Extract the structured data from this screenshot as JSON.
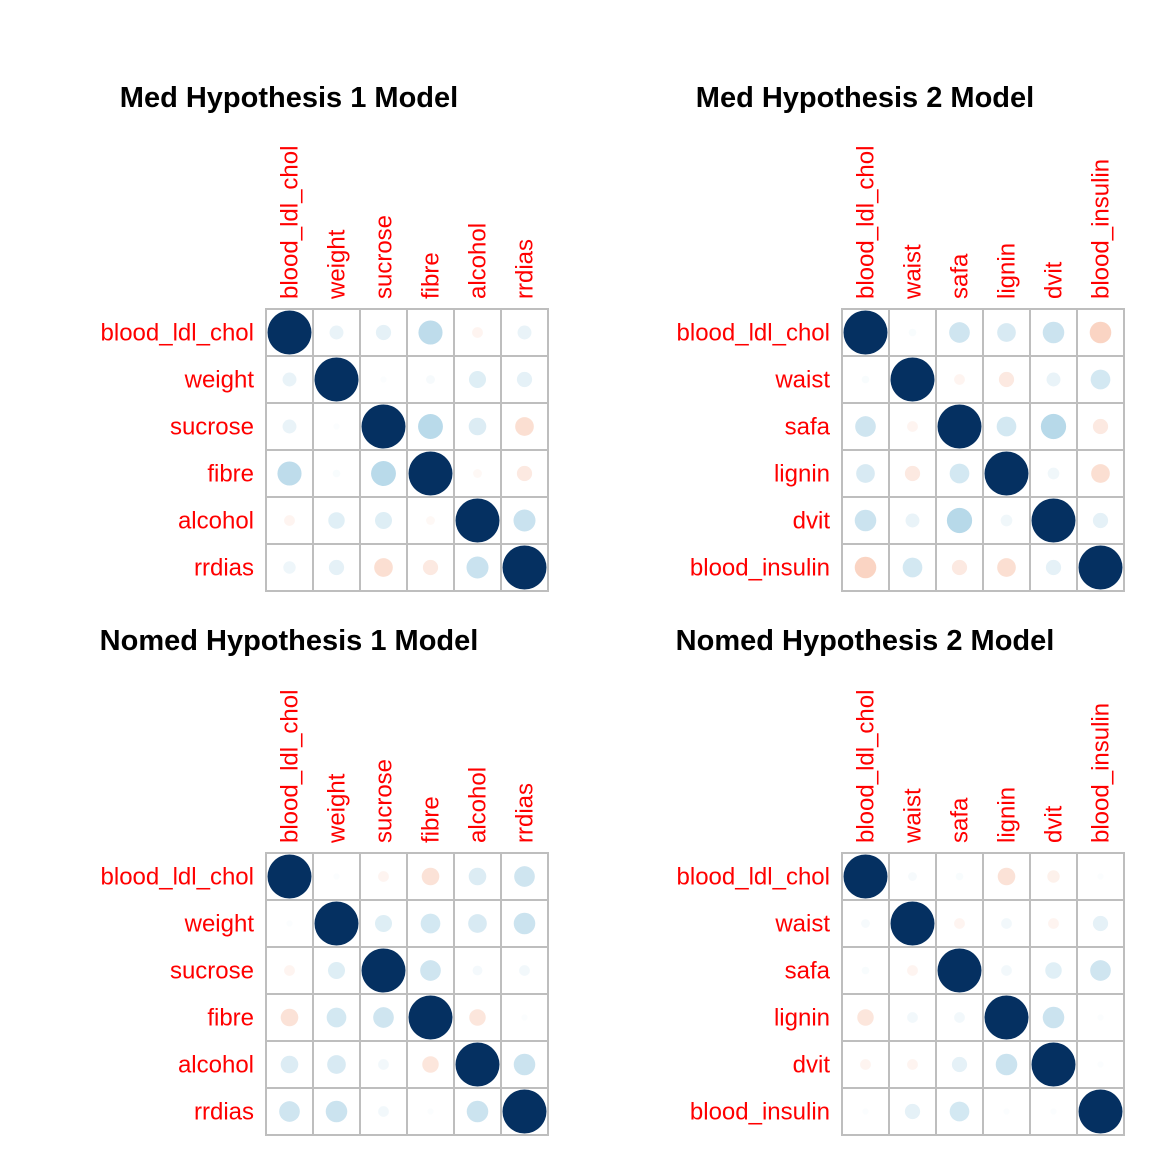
{
  "chart_data": [
    {
      "type": "heatmap",
      "title": "Med Hypothesis 1 Model",
      "variables": [
        "blood_ldl_chol",
        "weight",
        "sucrose",
        "fibre",
        "alcohol",
        "rrdias"
      ],
      "matrix": [
        [
          1.0,
          0.1,
          0.12,
          0.3,
          -0.06,
          0.1
        ],
        [
          0.1,
          1.0,
          0.02,
          0.04,
          0.15,
          0.12
        ],
        [
          0.1,
          0.02,
          1.0,
          0.32,
          0.16,
          -0.18
        ],
        [
          0.3,
          0.03,
          0.32,
          1.0,
          -0.04,
          -0.12
        ],
        [
          -0.06,
          0.14,
          0.15,
          -0.04,
          1.0,
          0.25
        ],
        [
          0.08,
          0.12,
          -0.18,
          -0.12,
          0.25,
          1.0
        ]
      ],
      "color_scale": {
        "negative": "#B2182B",
        "neutral": "#FFFFFF",
        "positive": "#053061"
      }
    },
    {
      "type": "heatmap",
      "title": "Med Hypothesis 2 Model",
      "variables": [
        "blood_ldl_chol",
        "waist",
        "safa",
        "lignin",
        "dvit",
        "blood_insulin"
      ],
      "matrix": [
        [
          1.0,
          0.03,
          0.22,
          0.18,
          0.24,
          -0.24
        ],
        [
          0.03,
          1.0,
          -0.06,
          -0.12,
          0.1,
          0.2
        ],
        [
          0.22,
          -0.06,
          1.0,
          0.2,
          0.33,
          -0.12
        ],
        [
          0.18,
          -0.12,
          0.2,
          1.0,
          0.07,
          -0.18
        ],
        [
          0.24,
          0.1,
          0.33,
          0.07,
          1.0,
          0.12
        ],
        [
          -0.24,
          0.2,
          -0.12,
          -0.18,
          0.12,
          1.0
        ]
      ],
      "color_scale": {
        "negative": "#B2182B",
        "neutral": "#FFFFFF",
        "positive": "#053061"
      }
    },
    {
      "type": "heatmap",
      "title": "Nomed Hypothesis 1 Model",
      "variables": [
        "blood_ldl_chol",
        "weight",
        "sucrose",
        "fibre",
        "alcohol",
        "rrdias"
      ],
      "matrix": [
        [
          1.0,
          0.02,
          -0.06,
          -0.16,
          0.16,
          0.22
        ],
        [
          0.02,
          1.0,
          0.15,
          0.2,
          0.18,
          0.24
        ],
        [
          -0.06,
          0.15,
          1.0,
          0.22,
          0.05,
          0.06
        ],
        [
          -0.16,
          0.2,
          0.22,
          1.0,
          -0.14,
          0.02
        ],
        [
          0.16,
          0.18,
          0.06,
          -0.14,
          1.0,
          0.24
        ],
        [
          0.22,
          0.24,
          0.06,
          0.02,
          0.24,
          1.0
        ]
      ],
      "color_scale": {
        "negative": "#B2182B",
        "neutral": "#FFFFFF",
        "positive": "#053061"
      }
    },
    {
      "type": "heatmap",
      "title": "Nomed Hypothesis 2 Model",
      "variables": [
        "blood_ldl_chol",
        "waist",
        "safa",
        "lignin",
        "dvit",
        "blood_insulin"
      ],
      "matrix": [
        [
          1.0,
          0.04,
          0.03,
          -0.16,
          -0.08,
          0.02
        ],
        [
          0.04,
          1.0,
          -0.06,
          0.06,
          -0.06,
          0.12
        ],
        [
          0.03,
          -0.06,
          1.0,
          0.06,
          0.14,
          0.22
        ],
        [
          -0.14,
          0.06,
          0.06,
          1.0,
          0.24,
          0.02
        ],
        [
          -0.06,
          -0.06,
          0.12,
          0.24,
          1.0,
          0.02
        ],
        [
          0.02,
          0.12,
          0.2,
          0.02,
          0.02,
          1.0
        ]
      ],
      "color_scale": {
        "negative": "#B2182B",
        "neutral": "#FFFFFF",
        "positive": "#053061"
      }
    }
  ]
}
